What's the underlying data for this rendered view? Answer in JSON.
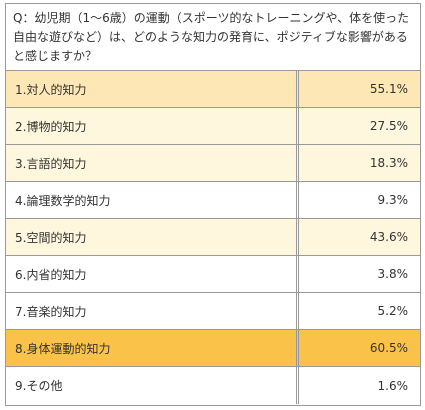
{
  "question": "Q：幼児期（1〜6歳）の運動（スポーツ的なトレーニングや、体を使った自由な遊びなど）は、どのような知力の発育に、ポジティブな影響があると感じますか？",
  "colors": {
    "rank1": "#fbc24a",
    "rank2": "#fde7b4",
    "rank3": "#fef7dd",
    "plain": "#ffffff",
    "border": "#9a9a9a",
    "text": "#333333"
  },
  "rows": [
    {
      "label": "1.対人的知力",
      "value": "55.1%",
      "highlight": "rank2"
    },
    {
      "label": "2.博物的知力",
      "value": "27.5%",
      "highlight": "rank3"
    },
    {
      "label": "3.言語的知力",
      "value": "18.3%",
      "highlight": "rank3"
    },
    {
      "label": "4.論理数学的知力",
      "value": "9.3%",
      "highlight": "plain"
    },
    {
      "label": "5.空間的知力",
      "value": "43.6%",
      "highlight": "rank3"
    },
    {
      "label": "6.内省的知力",
      "value": "3.8%",
      "highlight": "plain"
    },
    {
      "label": "7.音楽的知力",
      "value": "5.2%",
      "highlight": "plain"
    },
    {
      "label": "8.身体運動的知力",
      "value": "60.5%",
      "highlight": "rank1"
    },
    {
      "label": "9.その他",
      "value": "1.6%",
      "highlight": "plain"
    }
  ]
}
